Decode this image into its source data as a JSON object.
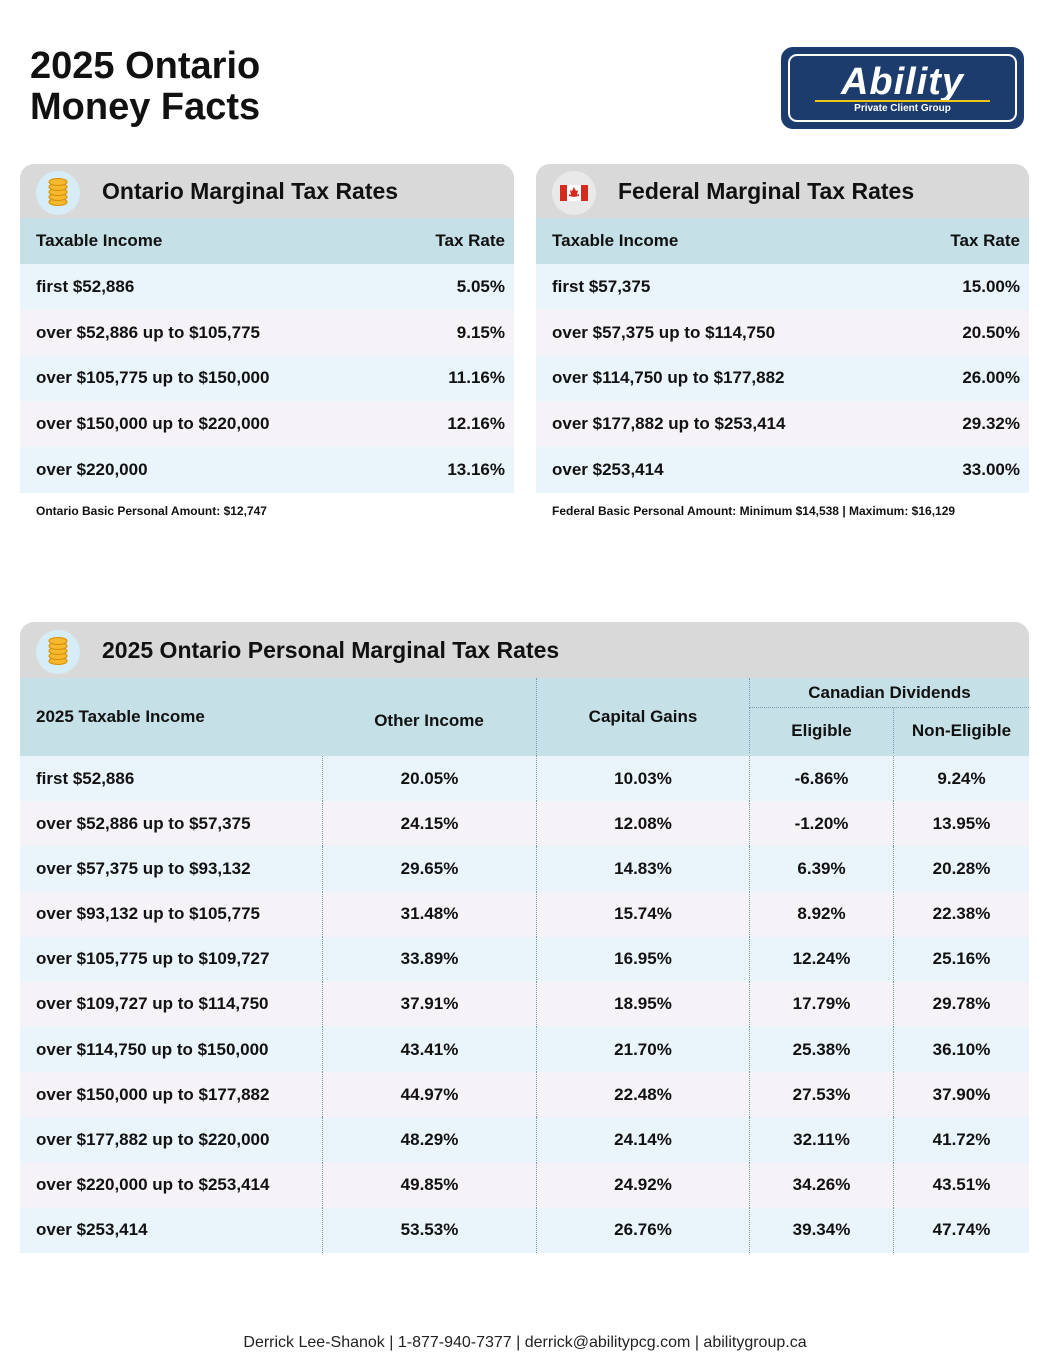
{
  "header": {
    "title_lines": [
      "2025 Ontario",
      "Money Facts"
    ],
    "logo": {
      "name": "Ability",
      "tagline": "Private Client Group"
    }
  },
  "ontario_table": {
    "title": "Ontario Marginal Tax Rates",
    "columns": [
      "Taxable Income",
      "Tax Rate"
    ],
    "rows": [
      [
        "first $52,886",
        "5.05%"
      ],
      [
        "over $52,886 up to $105,775",
        "9.15%"
      ],
      [
        "over $105,775 up to $150,000",
        "11.16%"
      ],
      [
        "over $150,000 up to $220,000",
        "12.16%"
      ],
      [
        "over $220,000",
        "13.16%"
      ]
    ],
    "note": "Ontario Basic Personal Amount:  $12,747"
  },
  "federal_table": {
    "title": "Federal Marginal Tax Rates",
    "columns": [
      "Taxable Income",
      "Tax Rate"
    ],
    "rows": [
      [
        "first $57,375",
        "15.00%"
      ],
      [
        "over $57,375 up to $114,750",
        "20.50%"
      ],
      [
        "over $114,750 up to $177,882",
        "26.00%"
      ],
      [
        "over $177,882 up to $253,414",
        "29.32%"
      ],
      [
        "over $253,414",
        "33.00%"
      ]
    ],
    "note": "Federal Basic Personal Amount:  Minimum $14,538 | Maximum: $16,129"
  },
  "personal_table": {
    "title": "2025 Ontario Personal Marginal Tax Rates",
    "columns": {
      "income": "2025 Taxable Income",
      "other": "Other Income",
      "capital": "Capital Gains",
      "dividends": "Canadian Dividends",
      "eligible": "Eligible",
      "non_eligible": "Non-Eligible"
    },
    "rows": [
      [
        "first $52,886",
        "20.05%",
        "10.03%",
        "-6.86%",
        "9.24%"
      ],
      [
        "over $52,886 up to $57,375",
        "24.15%",
        "12.08%",
        "-1.20%",
        "13.95%"
      ],
      [
        "over $57,375 up to $93,132",
        "29.65%",
        "14.83%",
        "6.39%",
        "20.28%"
      ],
      [
        "over $93,132 up to $105,775",
        "31.48%",
        "15.74%",
        "8.92%",
        "22.38%"
      ],
      [
        "over $105,775 up to $109,727",
        "33.89%",
        "16.95%",
        "12.24%",
        "25.16%"
      ],
      [
        "over $109,727 up to $114,750",
        "37.91%",
        "18.95%",
        "17.79%",
        "29.78%"
      ],
      [
        "over $114,750 up to $150,000",
        "43.41%",
        "21.70%",
        "25.38%",
        "36.10%"
      ],
      [
        "over $150,000 up to $177,882",
        "44.97%",
        "22.48%",
        "27.53%",
        "37.90%"
      ],
      [
        "over $177,882 up to $220,000",
        "48.29%",
        "24.14%",
        "32.11%",
        "41.72%"
      ],
      [
        "over $220,000 up to $253,414",
        "49.85%",
        "24.92%",
        "34.26%",
        "43.51%"
      ],
      [
        "over $253,414",
        "53.53%",
        "26.76%",
        "39.34%",
        "47.74%"
      ]
    ]
  },
  "footer": "Derrick Lee-Shanok | 1-877-940-7377 | derrick@abilitypcg.com | abilitygroup.ca"
}
